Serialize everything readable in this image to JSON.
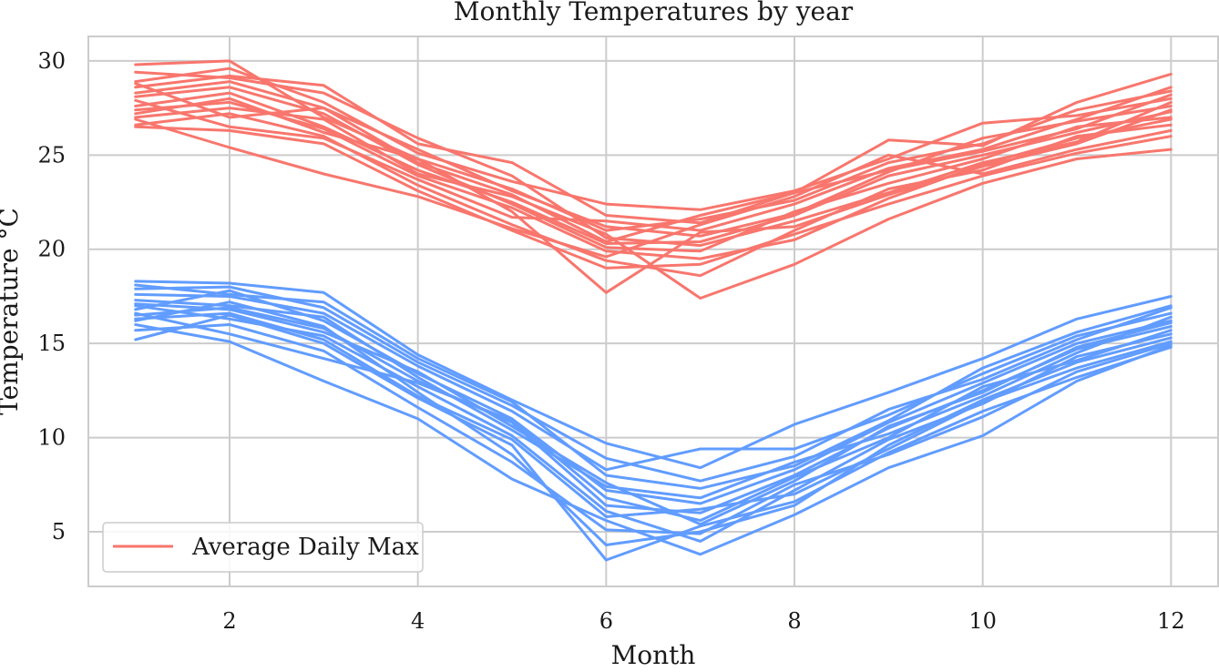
{
  "chart_data": {
    "type": "line",
    "title": "Monthly Temperatures by year",
    "xlabel": "Month",
    "ylabel": "Temperature °C",
    "xlim": [
      0.5,
      12.5
    ],
    "ylim": [
      2.1,
      31.3
    ],
    "xticks": [
      2,
      4,
      6,
      8,
      10,
      12
    ],
    "yticks": [
      5,
      10,
      15,
      20,
      25,
      30
    ],
    "grid": true,
    "legend": {
      "position": "lower-left",
      "entries": [
        {
          "label": "Average Daily Max",
          "color": "#f8766d"
        }
      ]
    },
    "x": [
      1,
      2,
      3,
      4,
      5,
      6,
      7,
      8,
      9,
      10,
      11,
      12
    ],
    "series": [
      {
        "group": "max",
        "color": "#f8766d",
        "values": [
          27.6,
          28.3,
          26.5,
          24.2,
          22.5,
          20.3,
          20.4,
          21.8,
          23.9,
          25.0,
          26.2,
          27.3
        ]
      },
      {
        "group": "max",
        "color": "#f8766d",
        "values": [
          29.8,
          30.0,
          27.0,
          24.8,
          23.2,
          21.0,
          21.6,
          22.6,
          24.6,
          25.6,
          27.4,
          28.4
        ]
      },
      {
        "group": "max",
        "color": "#f8766d",
        "values": [
          26.5,
          26.3,
          25.6,
          23.1,
          21.0,
          19.0,
          19.2,
          20.8,
          22.4,
          23.9,
          25.1,
          26.0
        ]
      },
      {
        "group": "max",
        "color": "#f8766d",
        "values": [
          28.6,
          29.2,
          28.7,
          25.6,
          24.6,
          21.8,
          21.4,
          23.0,
          25.8,
          25.5,
          27.8,
          29.3
        ]
      },
      {
        "group": "max",
        "color": "#f8766d",
        "values": [
          27.2,
          28.0,
          26.2,
          24.8,
          22.0,
          17.7,
          20.9,
          21.2,
          22.9,
          24.4,
          25.6,
          27.4
        ]
      },
      {
        "group": "max",
        "color": "#f8766d",
        "values": [
          28.9,
          29.6,
          27.8,
          25.1,
          23.6,
          22.4,
          22.1,
          23.1,
          24.8,
          26.7,
          27.1,
          28.0
        ]
      },
      {
        "group": "max",
        "color": "#f8766d",
        "values": [
          27.0,
          27.5,
          26.9,
          24.0,
          22.8,
          20.8,
          17.4,
          19.2,
          21.6,
          23.5,
          24.8,
          25.3
        ]
      },
      {
        "group": "max",
        "color": "#f8766d",
        "values": [
          26.6,
          27.2,
          26.0,
          23.4,
          21.3,
          19.4,
          18.6,
          21.0,
          23.2,
          24.2,
          26.0,
          26.6
        ]
      },
      {
        "group": "max",
        "color": "#f8766d",
        "values": [
          28.1,
          28.6,
          27.2,
          24.5,
          22.4,
          20.1,
          19.9,
          22.0,
          23.5,
          24.8,
          26.5,
          27.0
        ]
      },
      {
        "group": "max",
        "color": "#f8766d",
        "values": [
          27.9,
          26.5,
          25.9,
          23.7,
          21.7,
          21.5,
          21.0,
          22.4,
          24.3,
          25.3,
          26.9,
          28.6
        ]
      },
      {
        "group": "max",
        "color": "#f8766d",
        "values": [
          29.4,
          29.1,
          28.3,
          25.9,
          23.9,
          20.6,
          20.2,
          21.5,
          23.0,
          24.6,
          25.7,
          27.8
        ]
      },
      {
        "group": "max",
        "color": "#f8766d",
        "values": [
          26.9,
          25.4,
          24.0,
          22.8,
          21.1,
          19.6,
          21.3,
          22.8,
          25.0,
          24.0,
          25.3,
          26.3
        ]
      },
      {
        "group": "max",
        "color": "#f8766d",
        "values": [
          28.3,
          28.9,
          27.5,
          25.3,
          23.1,
          21.2,
          20.7,
          21.9,
          24.1,
          25.9,
          26.8,
          27.6
        ]
      },
      {
        "group": "max",
        "color": "#f8766d",
        "values": [
          27.4,
          27.8,
          26.4,
          23.9,
          22.2,
          19.9,
          19.5,
          20.5,
          22.7,
          24.5,
          25.9,
          26.9
        ]
      },
      {
        "group": "max",
        "color": "#f8766d",
        "values": [
          28.8,
          27.0,
          27.5,
          24.6,
          22.9,
          20.4,
          21.8,
          23.0,
          24.2,
          25.2,
          26.4,
          28.2
        ]
      },
      {
        "group": "min",
        "color": "#619cff",
        "values": [
          16.5,
          16.9,
          15.8,
          13.0,
          10.8,
          6.4,
          6.0,
          8.0,
          10.5,
          12.5,
          14.7,
          15.9
        ]
      },
      {
        "group": "min",
        "color": "#619cff",
        "values": [
          18.3,
          18.2,
          17.7,
          14.4,
          12.0,
          9.7,
          8.4,
          10.7,
          12.4,
          14.2,
          16.3,
          17.5
        ]
      },
      {
        "group": "min",
        "color": "#619cff",
        "values": [
          15.2,
          16.5,
          15.0,
          12.1,
          9.6,
          3.5,
          5.3,
          6.6,
          9.2,
          11.4,
          13.2,
          14.8
        ]
      },
      {
        "group": "min",
        "color": "#619cff",
        "values": [
          17.6,
          17.5,
          16.6,
          13.8,
          11.4,
          8.3,
          9.4,
          9.4,
          11.2,
          13.4,
          15.4,
          16.6
        ]
      },
      {
        "group": "min",
        "color": "#619cff",
        "values": [
          16.0,
          15.1,
          13.0,
          11.0,
          7.8,
          5.6,
          3.8,
          5.9,
          8.4,
          10.1,
          13.0,
          14.9
        ]
      },
      {
        "group": "min",
        "color": "#619cff",
        "values": [
          16.8,
          17.8,
          16.2,
          13.4,
          11.0,
          7.2,
          6.5,
          8.3,
          10.8,
          12.9,
          15.0,
          16.2
        ]
      },
      {
        "group": "min",
        "color": "#619cff",
        "values": [
          17.0,
          16.3,
          15.4,
          12.7,
          10.1,
          6.1,
          4.5,
          7.2,
          9.9,
          11.8,
          14.3,
          15.5
        ]
      },
      {
        "group": "min",
        "color": "#619cff",
        "values": [
          16.2,
          17.2,
          15.9,
          12.4,
          9.1,
          4.3,
          5.0,
          6.4,
          9.6,
          12.0,
          14.0,
          15.3
        ]
      },
      {
        "group": "min",
        "color": "#619cff",
        "values": [
          17.9,
          18.0,
          16.9,
          14.0,
          11.7,
          8.9,
          7.7,
          9.0,
          11.5,
          13.1,
          15.2,
          16.9
        ]
      },
      {
        "group": "min",
        "color": "#619cff",
        "values": [
          15.7,
          16.0,
          14.6,
          11.6,
          8.7,
          5.1,
          4.9,
          7.5,
          9.1,
          11.1,
          13.5,
          15.0
        ]
      },
      {
        "group": "min",
        "color": "#619cff",
        "values": [
          17.3,
          17.0,
          16.4,
          13.2,
          10.4,
          7.4,
          6.8,
          8.7,
          10.2,
          12.2,
          14.5,
          16.4
        ]
      },
      {
        "group": "min",
        "color": "#619cff",
        "values": [
          16.6,
          15.5,
          14.2,
          12.9,
          10.9,
          6.8,
          5.6,
          7.9,
          10.0,
          12.7,
          14.1,
          15.7
        ]
      },
      {
        "group": "min",
        "color": "#619cff",
        "values": [
          18.1,
          17.6,
          17.2,
          14.2,
          11.9,
          8.0,
          7.3,
          8.5,
          10.9,
          13.7,
          15.6,
          17.0
        ]
      },
      {
        "group": "min",
        "color": "#619cff",
        "values": [
          16.3,
          16.6,
          15.2,
          12.2,
          9.9,
          5.8,
          6.2,
          7.0,
          9.4,
          11.9,
          13.7,
          15.1
        ]
      },
      {
        "group": "min",
        "color": "#619cff",
        "values": [
          17.1,
          16.8,
          15.6,
          13.5,
          10.6,
          7.6,
          5.4,
          7.7,
          10.6,
          12.4,
          14.8,
          16.1
        ]
      }
    ]
  }
}
